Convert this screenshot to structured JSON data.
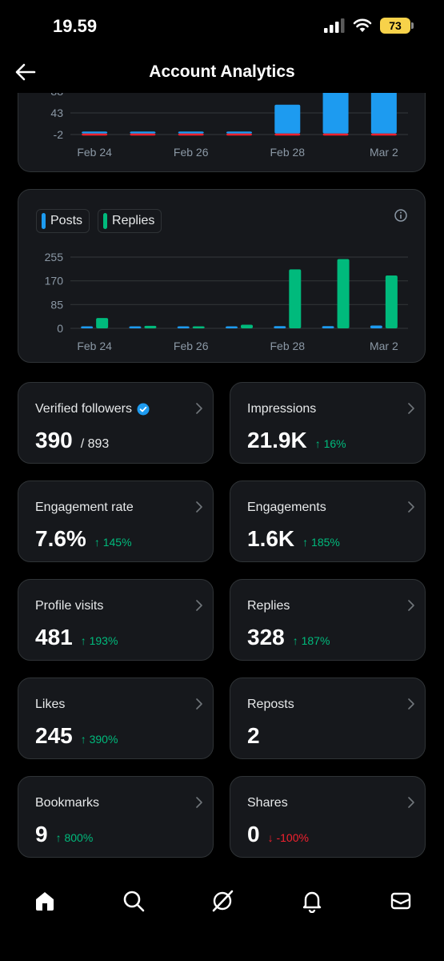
{
  "status_bar": {
    "time": "19.59",
    "battery": "73"
  },
  "header": {
    "title": "Account Analytics"
  },
  "colors": {
    "posts": "#1d9bf0",
    "replies": "#00ba7c",
    "red": "#f4212e",
    "card_bg": "#16181c",
    "border": "#2f3336",
    "up": "#00ba7c",
    "down": "#f4212e"
  },
  "chart_data": [
    {
      "type": "bar",
      "visible": "partially cropped at top by scroll",
      "categories": [
        "Feb 24",
        "Feb 25",
        "Feb 26",
        "Feb 27",
        "Feb 28",
        "Mar 1",
        "Mar 2"
      ],
      "x_tick_labels": [
        "Feb 24",
        "Feb 26",
        "Feb 28",
        "Mar 2"
      ],
      "y_tick_labels": [
        "88",
        "43",
        "-2"
      ],
      "ylim": [
        -2,
        88
      ],
      "series": [
        {
          "color": "#1d9bf0",
          "values": [
            1,
            0,
            0,
            0,
            60,
            88,
            88
          ]
        },
        {
          "color": "#f4212e",
          "values": [
            -1,
            -1,
            -1,
            -1,
            -1,
            -1,
            -1
          ]
        }
      ],
      "grid": true
    },
    {
      "type": "bar",
      "categories": [
        "Feb 24",
        "Feb 25",
        "Feb 26",
        "Feb 27",
        "Feb 28",
        "Mar 1",
        "Mar 2"
      ],
      "x_tick_labels": [
        "Feb 24",
        "Feb 26",
        "Feb 28",
        "Mar 2"
      ],
      "y_tick_labels": [
        "255",
        "170",
        "85",
        "0"
      ],
      "ylim": [
        0,
        255
      ],
      "series": [
        {
          "name": "Posts",
          "color": "#1d9bf0",
          "values": [
            3,
            2,
            0,
            2,
            8,
            8,
            10
          ]
        },
        {
          "name": "Replies",
          "color": "#00ba7c",
          "values": [
            37,
            9,
            4,
            13,
            211,
            248,
            189
          ]
        }
      ],
      "legend": "top-left",
      "grid": true
    }
  ],
  "metrics": [
    {
      "label": "Verified followers",
      "value": "390",
      "total": "/ 893",
      "verified_icon": "verified-badge-icon"
    },
    {
      "label": "Impressions",
      "value": "21.9K",
      "change": "↑ 16%",
      "direction": "up"
    },
    {
      "label": "Engagement rate",
      "value": "7.6%",
      "change": "↑ 145%",
      "direction": "up"
    },
    {
      "label": "Engagements",
      "value": "1.6K",
      "change": "↑ 185%",
      "direction": "up"
    },
    {
      "label": "Profile visits",
      "value": "481",
      "change": "↑ 193%",
      "direction": "up"
    },
    {
      "label": "Replies",
      "value": "328",
      "change": "↑ 187%",
      "direction": "up"
    },
    {
      "label": "Likes",
      "value": "245",
      "change": "↑ 390%",
      "direction": "up"
    },
    {
      "label": "Reposts",
      "value": "2"
    },
    {
      "label": "Bookmarks",
      "value": "9",
      "change": "↑ 800%",
      "direction": "up"
    },
    {
      "label": "Shares",
      "value": "0",
      "change": "↓ -100%",
      "direction": "down"
    }
  ],
  "bottom_nav": [
    {
      "icon": "home-icon",
      "active": true
    },
    {
      "icon": "search-icon"
    },
    {
      "icon": "grok-icon"
    },
    {
      "icon": "bell-icon"
    },
    {
      "icon": "mail-icon"
    }
  ]
}
